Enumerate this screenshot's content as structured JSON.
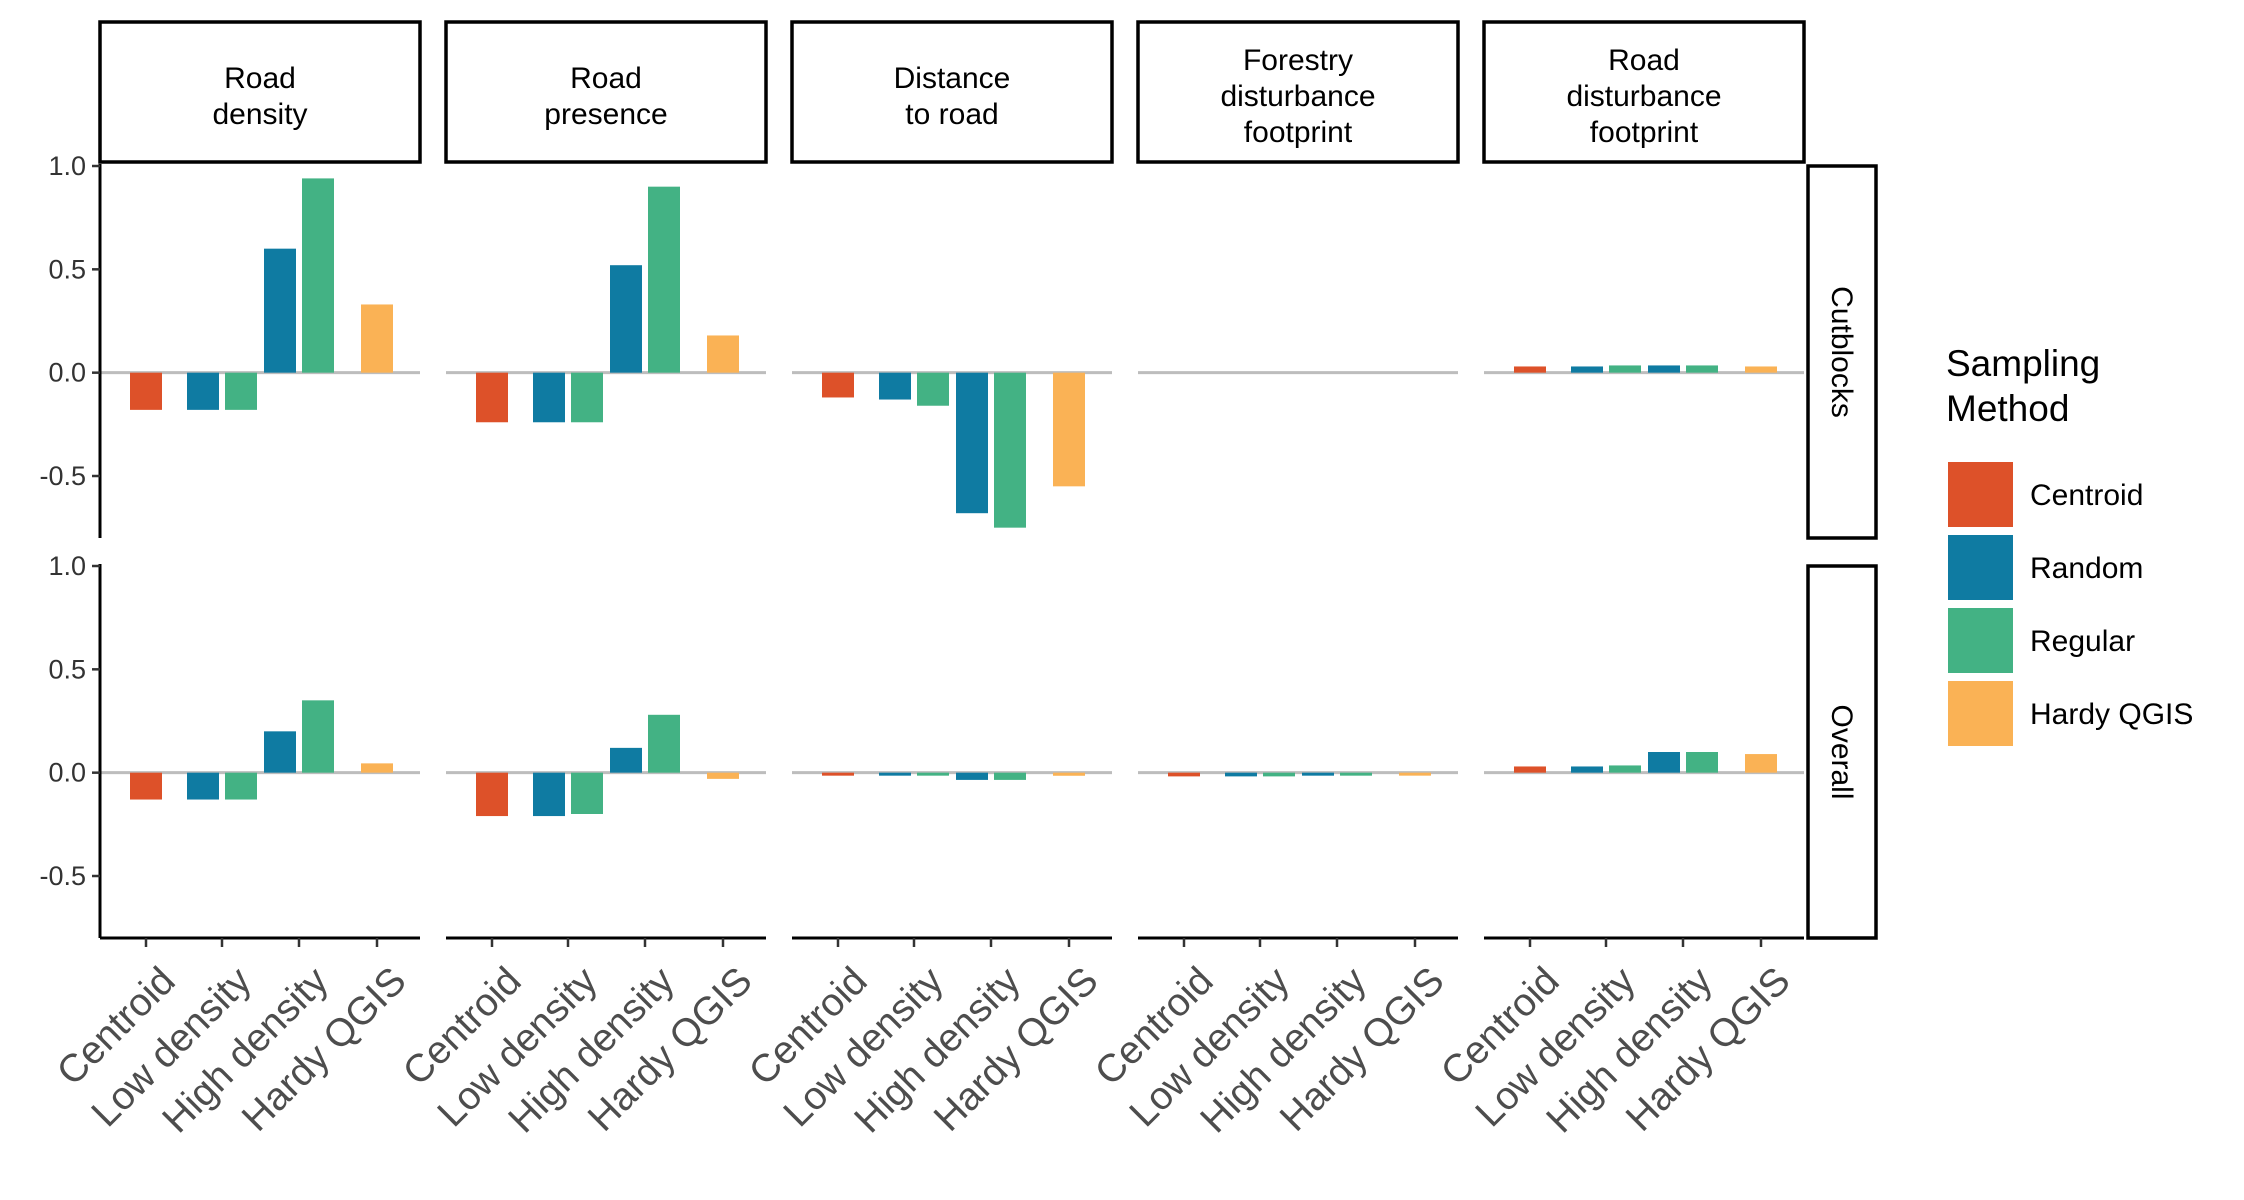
{
  "chart_data": {
    "type": "bar",
    "columns": [
      "Road\ndensity",
      "Road\npresence",
      "Distance\nto road",
      "Forestry\ndisturbance\nfootprint",
      "Road\ndisturbance\nfootprint"
    ],
    "rows": [
      "Cutblocks",
      "Overall"
    ],
    "categories": [
      "Centroid",
      "Low density",
      "High density",
      "Hardy QGIS"
    ],
    "ylim": [
      -0.8,
      1.0
    ],
    "yticks": [
      -0.5,
      0.0,
      0.5,
      1.0
    ],
    "legend": {
      "title": "Sampling\nMethod",
      "position": "right",
      "items": [
        {
          "name": "Centroid",
          "color": "#DD5129"
        },
        {
          "name": "Random",
          "color": "#0F7BA2"
        },
        {
          "name": "Regular",
          "color": "#43B284"
        },
        {
          "name": "Hardy QGIS",
          "color": "#FAB255"
        }
      ]
    },
    "bars": [
      {
        "row": "Cutblocks",
        "column": "Road\ndensity",
        "values": [
          {
            "category": "Centroid",
            "method": "Centroid",
            "value": -0.18
          },
          {
            "category": "Low density",
            "method": "Random",
            "value": -0.18
          },
          {
            "category": "Low density",
            "method": "Regular",
            "value": -0.18
          },
          {
            "category": "High density",
            "method": "Random",
            "value": 0.6
          },
          {
            "category": "High density",
            "method": "Regular",
            "value": 0.94
          },
          {
            "category": "Hardy QGIS",
            "method": "Hardy QGIS",
            "value": 0.33
          }
        ]
      },
      {
        "row": "Cutblocks",
        "column": "Road\npresence",
        "values": [
          {
            "category": "Centroid",
            "method": "Centroid",
            "value": -0.24
          },
          {
            "category": "Low density",
            "method": "Random",
            "value": -0.24
          },
          {
            "category": "Low density",
            "method": "Regular",
            "value": -0.24
          },
          {
            "category": "High density",
            "method": "Random",
            "value": 0.52
          },
          {
            "category": "High density",
            "method": "Regular",
            "value": 0.9
          },
          {
            "category": "Hardy QGIS",
            "method": "Hardy QGIS",
            "value": 0.18
          }
        ]
      },
      {
        "row": "Cutblocks",
        "column": "Distance\nto road",
        "values": [
          {
            "category": "Centroid",
            "method": "Centroid",
            "value": -0.12
          },
          {
            "category": "Low density",
            "method": "Random",
            "value": -0.13
          },
          {
            "category": "Low density",
            "method": "Regular",
            "value": -0.16
          },
          {
            "category": "High density",
            "method": "Random",
            "value": -0.68
          },
          {
            "category": "High density",
            "method": "Regular",
            "value": -0.75
          },
          {
            "category": "Hardy QGIS",
            "method": "Hardy QGIS",
            "value": -0.55
          }
        ]
      },
      {
        "row": "Cutblocks",
        "column": "Forestry\ndisturbance\nfootprint",
        "values": [
          {
            "category": "Centroid",
            "method": "Centroid",
            "value": 0.0
          },
          {
            "category": "Low density",
            "method": "Random",
            "value": 0.0
          },
          {
            "category": "Low density",
            "method": "Regular",
            "value": 0.0
          },
          {
            "category": "High density",
            "method": "Random",
            "value": 0.0
          },
          {
            "category": "High density",
            "method": "Regular",
            "value": 0.0
          },
          {
            "category": "Hardy QGIS",
            "method": "Hardy QGIS",
            "value": 0.0
          }
        ]
      },
      {
        "row": "Cutblocks",
        "column": "Road\ndisturbance\nfootprint",
        "values": [
          {
            "category": "Centroid",
            "method": "Centroid",
            "value": 0.03
          },
          {
            "category": "Low density",
            "method": "Random",
            "value": 0.03
          },
          {
            "category": "Low density",
            "method": "Regular",
            "value": 0.035
          },
          {
            "category": "High density",
            "method": "Random",
            "value": 0.035
          },
          {
            "category": "High density",
            "method": "Regular",
            "value": 0.035
          },
          {
            "category": "Hardy QGIS",
            "method": "Hardy QGIS",
            "value": 0.03
          }
        ]
      },
      {
        "row": "Overall",
        "column": "Road\ndensity",
        "values": [
          {
            "category": "Centroid",
            "method": "Centroid",
            "value": -0.13
          },
          {
            "category": "Low density",
            "method": "Random",
            "value": -0.13
          },
          {
            "category": "Low density",
            "method": "Regular",
            "value": -0.13
          },
          {
            "category": "High density",
            "method": "Random",
            "value": 0.2
          },
          {
            "category": "High density",
            "method": "Regular",
            "value": 0.35
          },
          {
            "category": "Hardy QGIS",
            "method": "Hardy QGIS",
            "value": 0.045
          }
        ]
      },
      {
        "row": "Overall",
        "column": "Road\npresence",
        "values": [
          {
            "category": "Centroid",
            "method": "Centroid",
            "value": -0.21
          },
          {
            "category": "Low density",
            "method": "Random",
            "value": -0.21
          },
          {
            "category": "Low density",
            "method": "Regular",
            "value": -0.2
          },
          {
            "category": "High density",
            "method": "Random",
            "value": 0.12
          },
          {
            "category": "High density",
            "method": "Regular",
            "value": 0.28
          },
          {
            "category": "Hardy QGIS",
            "method": "Hardy QGIS",
            "value": -0.03
          }
        ]
      },
      {
        "row": "Overall",
        "column": "Distance\nto road",
        "values": [
          {
            "category": "Centroid",
            "method": "Centroid",
            "value": -0.008
          },
          {
            "category": "Low density",
            "method": "Random",
            "value": -0.008
          },
          {
            "category": "Low density",
            "method": "Regular",
            "value": -0.008
          },
          {
            "category": "High density",
            "method": "Random",
            "value": -0.035
          },
          {
            "category": "High density",
            "method": "Regular",
            "value": -0.035
          },
          {
            "category": "Hardy QGIS",
            "method": "Hardy QGIS",
            "value": -0.015
          }
        ]
      },
      {
        "row": "Overall",
        "column": "Forestry\ndisturbance\nfootprint",
        "values": [
          {
            "category": "Centroid",
            "method": "Centroid",
            "value": -0.018
          },
          {
            "category": "Low density",
            "method": "Random",
            "value": -0.018
          },
          {
            "category": "Low density",
            "method": "Regular",
            "value": -0.018
          },
          {
            "category": "High density",
            "method": "Random",
            "value": -0.012
          },
          {
            "category": "High density",
            "method": "Regular",
            "value": -0.012
          },
          {
            "category": "Hardy QGIS",
            "method": "Hardy QGIS",
            "value": -0.008
          }
        ]
      },
      {
        "row": "Overall",
        "column": "Road\ndisturbance\nfootprint",
        "values": [
          {
            "category": "Centroid",
            "method": "Centroid",
            "value": 0.03
          },
          {
            "category": "Low density",
            "method": "Random",
            "value": 0.03
          },
          {
            "category": "Low density",
            "method": "Regular",
            "value": 0.035
          },
          {
            "category": "High density",
            "method": "Random",
            "value": 0.1
          },
          {
            "category": "High density",
            "method": "Regular",
            "value": 0.1
          },
          {
            "category": "Hardy QGIS",
            "method": "Hardy QGIS",
            "value": 0.09
          }
        ]
      }
    ]
  }
}
